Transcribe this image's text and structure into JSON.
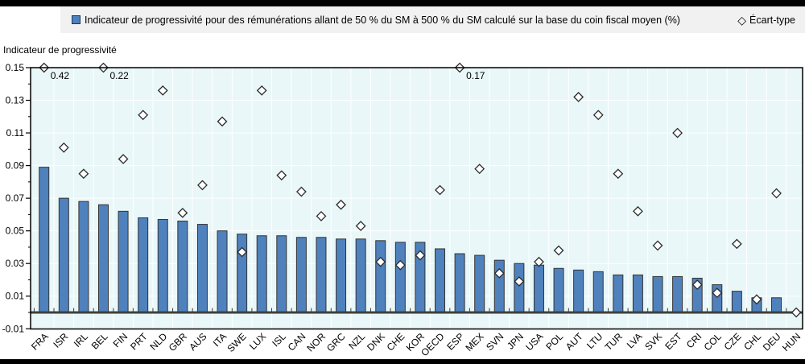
{
  "legend": {
    "series1_label": "Indicateur de progressivité pour des rémunérations allant de 50 % du SM à 500 % du SM calculé sur la base du coin fiscal moyen (%)",
    "series2_label": "Écart-type",
    "diamond_glyph": "◇"
  },
  "colors": {
    "bar_fill": "#4f81bd",
    "bar_stroke": "#333333",
    "plot_bg": "#e9f7f8",
    "grid": "#ffffff",
    "diamond_fill": "#ffffff",
    "diamond_stroke": "#2b2b2b",
    "frame": "#000000",
    "zero_line": "#3f3f3f",
    "legend_band": "#f1f1f1"
  },
  "chart_data": {
    "type": "bar",
    "title": "",
    "xlabel": "",
    "ylabel": "Indicateur de progressivité",
    "ylim": [
      -0.01,
      0.15
    ],
    "ytick_step": 0.02,
    "ytick_labels": [
      "0.15",
      "0.13",
      "0.11",
      "0.09",
      "0.07",
      "0.05",
      "0.03",
      "0.01",
      "-0.01"
    ],
    "grid": "on",
    "legend_position": "top",
    "categories": [
      "FRA",
      "ISR",
      "IRL",
      "BEL",
      "FIN",
      "PRT",
      "NLD",
      "GBR",
      "AUS",
      "ITA",
      "SWE",
      "LUX",
      "ISL",
      "CAN",
      "NOR",
      "GRC",
      "NZL",
      "DNK",
      "CHE",
      "KOR",
      "OECD",
      "ESP",
      "MEX",
      "SVN",
      "JPN",
      "USA",
      "POL",
      "AUT",
      "LTU",
      "TUR",
      "LVA",
      "SVK",
      "EST",
      "CRI",
      "COL",
      "CZE",
      "CHL",
      "DEU",
      "HUN"
    ],
    "series": [
      {
        "name": "Indicateur de progressivité pour des rémunérations allant de 50 % du SM à 500 % du SM calculé sur la base du coin fiscal moyen (%)",
        "type": "bar",
        "values": [
          0.089,
          0.07,
          0.068,
          0.066,
          0.062,
          0.058,
          0.057,
          0.056,
          0.054,
          0.05,
          0.048,
          0.047,
          0.047,
          0.046,
          0.046,
          0.045,
          0.045,
          0.044,
          0.043,
          0.043,
          0.039,
          0.036,
          0.035,
          0.032,
          0.03,
          0.029,
          0.027,
          0.026,
          0.025,
          0.023,
          0.023,
          0.022,
          0.022,
          0.021,
          0.017,
          0.013,
          0.009,
          0.009,
          0.0
        ]
      },
      {
        "name": "Écart-type",
        "type": "scatter-diamond",
        "cap": 0.15,
        "values": [
          0.42,
          0.101,
          0.085,
          0.22,
          0.094,
          0.121,
          0.136,
          0.061,
          0.078,
          0.117,
          0.037,
          0.136,
          0.084,
          0.074,
          0.059,
          0.066,
          0.053,
          0.031,
          0.029,
          0.035,
          0.075,
          0.17,
          0.088,
          0.024,
          0.019,
          0.031,
          0.038,
          0.132,
          0.121,
          0.085,
          0.062,
          0.041,
          0.11,
          0.017,
          0.012,
          0.042,
          0.008,
          0.073,
          0.0
        ]
      }
    ],
    "annotations": [
      {
        "index": 0,
        "label": "0.42"
      },
      {
        "index": 3,
        "label": "0.22"
      },
      {
        "index": 21,
        "label": "0.17"
      }
    ]
  }
}
